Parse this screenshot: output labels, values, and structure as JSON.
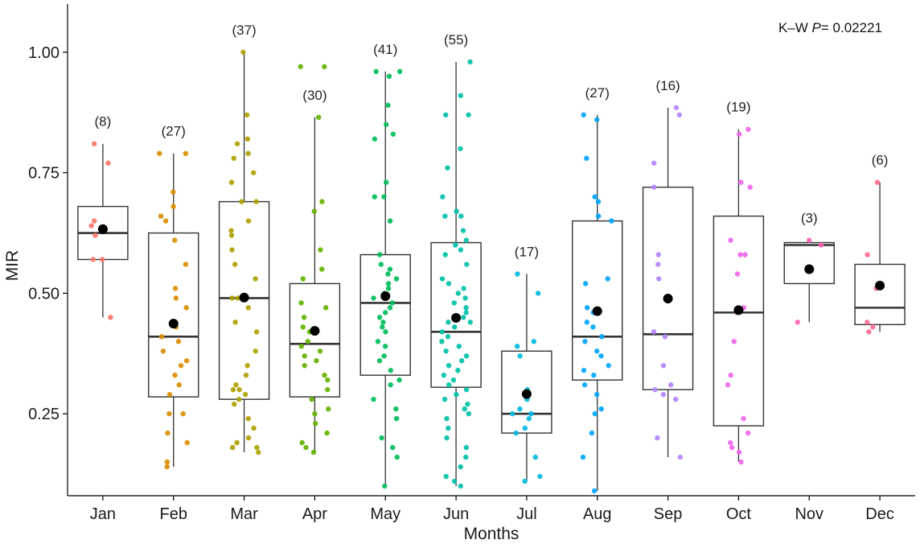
{
  "chart_data": {
    "type": "box",
    "xlabel": "Months",
    "ylabel": "MIR",
    "ylim": [
      0.08,
      1.1
    ],
    "yticks": [
      "0.25",
      "0.50",
      "0.75",
      "1.00"
    ],
    "ytick_values": [
      0.25,
      0.5,
      0.75,
      1.0
    ],
    "grid": false,
    "stat_annotation": {
      "prefix": "K–W ",
      "p_label": "P",
      "suffix": "= 0.02221"
    },
    "months": [
      {
        "label": "Jan",
        "count_label": "(8)",
        "n": 8,
        "color": "#F8766D",
        "whisker_low": 0.45,
        "q1": 0.57,
        "median": 0.625,
        "q3": 0.68,
        "whisker_high": 0.81,
        "mean": 0.633,
        "points": [
          0.81,
          0.77,
          0.65,
          0.64,
          0.62,
          0.57,
          0.57,
          0.45
        ]
      },
      {
        "label": "Feb",
        "count_label": "(27)",
        "n": 27,
        "color": "#DB8E00",
        "whisker_low": 0.14,
        "q1": 0.285,
        "median": 0.41,
        "q3": 0.625,
        "whisker_high": 0.79,
        "mean": 0.437,
        "points": [
          0.79,
          0.79,
          0.71,
          0.68,
          0.66,
          0.65,
          0.61,
          0.56,
          0.51,
          0.49,
          0.47,
          0.44,
          0.43,
          0.41,
          0.4,
          0.38,
          0.36,
          0.35,
          0.33,
          0.31,
          0.29,
          0.25,
          0.25,
          0.21,
          0.19,
          0.15,
          0.14
        ]
      },
      {
        "label": "Mar",
        "count_label": "(37)",
        "n": 37,
        "color": "#AEA200",
        "whisker_low": 0.17,
        "q1": 0.28,
        "median": 0.49,
        "q3": 0.69,
        "whisker_high": 1.0,
        "mean": 0.491,
        "points": [
          1.0,
          0.87,
          0.82,
          0.81,
          0.79,
          0.78,
          0.75,
          0.73,
          0.69,
          0.69,
          0.65,
          0.63,
          0.62,
          0.59,
          0.56,
          0.53,
          0.49,
          0.49,
          0.47,
          0.44,
          0.42,
          0.38,
          0.35,
          0.33,
          0.31,
          0.3,
          0.3,
          0.29,
          0.28,
          0.27,
          0.24,
          0.22,
          0.2,
          0.19,
          0.18,
          0.18,
          0.17
        ]
      },
      {
        "label": "Apr",
        "count_label": "(30)",
        "n": 30,
        "color": "#64B200",
        "whisker_low": 0.17,
        "q1": 0.285,
        "median": 0.395,
        "q3": 0.52,
        "whisker_high": 0.865,
        "mean": 0.422,
        "points": [
          0.97,
          0.97,
          0.865,
          0.69,
          0.67,
          0.59,
          0.55,
          0.53,
          0.48,
          0.47,
          0.45,
          0.43,
          0.42,
          0.4,
          0.39,
          0.38,
          0.37,
          0.36,
          0.35,
          0.33,
          0.32,
          0.3,
          0.28,
          0.26,
          0.25,
          0.23,
          0.21,
          0.19,
          0.18,
          0.17
        ]
      },
      {
        "label": "May",
        "count_label": "(41)",
        "n": 41,
        "color": "#00BD5C",
        "whisker_low": 0.1,
        "q1": 0.33,
        "median": 0.48,
        "q3": 0.58,
        "whisker_high": 0.96,
        "mean": 0.494,
        "points": [
          0.96,
          0.96,
          0.95,
          0.89,
          0.85,
          0.83,
          0.82,
          0.73,
          0.7,
          0.7,
          0.65,
          0.58,
          0.56,
          0.55,
          0.54,
          0.53,
          0.52,
          0.51,
          0.5,
          0.49,
          0.48,
          0.47,
          0.46,
          0.45,
          0.44,
          0.43,
          0.42,
          0.4,
          0.39,
          0.37,
          0.36,
          0.34,
          0.32,
          0.31,
          0.28,
          0.26,
          0.24,
          0.2,
          0.18,
          0.16,
          0.1
        ]
      },
      {
        "label": "Jun",
        "count_label": "(55)",
        "n": 55,
        "color": "#00C1A7",
        "whisker_low": 0.1,
        "q1": 0.305,
        "median": 0.42,
        "q3": 0.605,
        "whisker_high": 0.98,
        "mean": 0.449,
        "points": [
          0.98,
          0.91,
          0.87,
          0.87,
          0.8,
          0.76,
          0.7,
          0.67,
          0.66,
          0.66,
          0.63,
          0.61,
          0.6,
          0.59,
          0.58,
          0.56,
          0.53,
          0.52,
          0.51,
          0.5,
          0.49,
          0.48,
          0.47,
          0.46,
          0.45,
          0.44,
          0.44,
          0.43,
          0.42,
          0.41,
          0.4,
          0.39,
          0.38,
          0.37,
          0.36,
          0.35,
          0.34,
          0.33,
          0.32,
          0.31,
          0.3,
          0.29,
          0.28,
          0.27,
          0.26,
          0.25,
          0.24,
          0.22,
          0.2,
          0.18,
          0.16,
          0.14,
          0.12,
          0.11,
          0.1
        ]
      },
      {
        "label": "Jul",
        "count_label": "(17)",
        "n": 17,
        "color": "#00BADE",
        "whisker_low": 0.11,
        "q1": 0.21,
        "median": 0.25,
        "q3": 0.38,
        "whisker_high": 0.54,
        "mean": 0.291,
        "points": [
          0.54,
          0.5,
          0.4,
          0.39,
          0.37,
          0.3,
          0.29,
          0.28,
          0.26,
          0.25,
          0.25,
          0.24,
          0.22,
          0.21,
          0.16,
          0.12,
          0.11
        ]
      },
      {
        "label": "Aug",
        "count_label": "(27)",
        "n": 27,
        "color": "#00A6FF",
        "whisker_low": 0.09,
        "q1": 0.32,
        "median": 0.41,
        "q3": 0.65,
        "whisker_high": 0.87,
        "mean": 0.463,
        "points": [
          0.87,
          0.86,
          0.78,
          0.7,
          0.69,
          0.66,
          0.65,
          0.53,
          0.52,
          0.47,
          0.46,
          0.44,
          0.43,
          0.41,
          0.4,
          0.38,
          0.37,
          0.35,
          0.34,
          0.33,
          0.31,
          0.29,
          0.26,
          0.25,
          0.21,
          0.16,
          0.09
        ]
      },
      {
        "label": "Sep",
        "count_label": "(16)",
        "n": 16,
        "color": "#B385FF",
        "whisker_low": 0.16,
        "q1": 0.3,
        "median": 0.415,
        "q3": 0.72,
        "whisker_high": 0.885,
        "mean": 0.489,
        "points": [
          0.885,
          0.87,
          0.77,
          0.72,
          0.58,
          0.56,
          0.53,
          0.42,
          0.41,
          0.35,
          0.31,
          0.3,
          0.29,
          0.28,
          0.2,
          0.16
        ]
      },
      {
        "label": "Oct",
        "count_label": "(19)",
        "n": 19,
        "color": "#EF67EB",
        "whisker_low": 0.15,
        "q1": 0.225,
        "median": 0.46,
        "q3": 0.66,
        "whisker_high": 0.84,
        "mean": 0.465,
        "points": [
          0.84,
          0.83,
          0.73,
          0.72,
          0.61,
          0.58,
          0.58,
          0.54,
          0.47,
          0.46,
          0.4,
          0.33,
          0.31,
          0.24,
          0.21,
          0.19,
          0.18,
          0.17,
          0.15
        ]
      },
      {
        "label": "Nov",
        "count_label": "(3)",
        "n": 3,
        "color": "#FF63B6",
        "whisker_low": 0.44,
        "q1": 0.52,
        "median": 0.6,
        "q3": 0.605,
        "whisker_high": 0.61,
        "mean": 0.55,
        "points": [
          0.61,
          0.6,
          0.44
        ]
      },
      {
        "label": "Dec",
        "count_label": "(6)",
        "n": 6,
        "color": "#FF6C91",
        "whisker_low": 0.42,
        "q1": 0.435,
        "median": 0.47,
        "q3": 0.56,
        "whisker_high": 0.73,
        "mean": 0.516,
        "points": [
          0.73,
          0.58,
          0.51,
          0.44,
          0.43,
          0.42
        ]
      }
    ]
  }
}
